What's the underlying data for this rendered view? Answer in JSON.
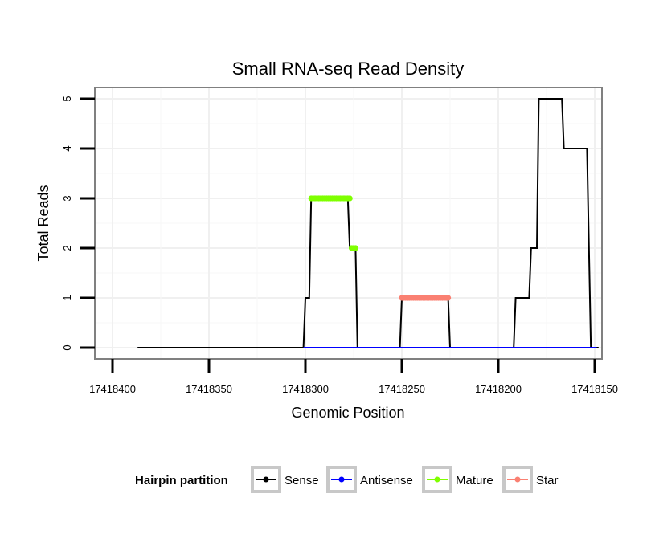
{
  "chart_data": {
    "type": "line",
    "title": "Small RNA-seq Read Density",
    "xlabel": "Genomic Position",
    "ylabel": "Total Reads",
    "x_reversed": true,
    "xlim": [
      17418405,
      17418150
    ],
    "ylim": [
      0,
      5
    ],
    "x_ticks": [
      17418400,
      17418350,
      17418300,
      17418250,
      17418200,
      17418150
    ],
    "x_tick_labels": [
      "17418400",
      "17418350",
      "17418300",
      "17418250",
      "17418200",
      "17418150"
    ],
    "y_ticks": [
      0,
      1,
      2,
      3,
      4,
      5
    ],
    "y_tick_labels": [
      "0",
      "1",
      "2",
      "3",
      "4",
      "5"
    ],
    "grid": true,
    "series": [
      {
        "name": "Sense",
        "color": "#000000",
        "style": "line",
        "points": [
          [
            17418387,
            0
          ],
          [
            17418301,
            0
          ],
          [
            17418300,
            1
          ],
          [
            17418298,
            1
          ],
          [
            17418297,
            3
          ],
          [
            17418278,
            3
          ],
          [
            17418277,
            2
          ],
          [
            17418274,
            2
          ],
          [
            17418273,
            0
          ],
          [
            17418251,
            0
          ],
          [
            17418250,
            1
          ],
          [
            17418226,
            1
          ],
          [
            17418225,
            0
          ],
          [
            17418192,
            0
          ],
          [
            17418191,
            1
          ],
          [
            17418184,
            1
          ],
          [
            17418183,
            2
          ],
          [
            17418180,
            2
          ],
          [
            17418179,
            5
          ],
          [
            17418167,
            5
          ],
          [
            17418166,
            4
          ],
          [
            17418154,
            4
          ],
          [
            17418153,
            2
          ],
          [
            17418152,
            0
          ],
          [
            17418148,
            0
          ]
        ]
      },
      {
        "name": "Antisense",
        "color": "#0000ff",
        "style": "line",
        "points": [
          [
            17418301,
            0
          ],
          [
            17418225,
            0
          ],
          [
            17418192,
            0
          ],
          [
            17418149,
            0
          ]
        ]
      },
      {
        "name": "Mature",
        "color": "#7fff00",
        "style": "points",
        "segments": [
          {
            "from": 17418297,
            "to": 17418277,
            "value": 3
          },
          {
            "from": 17418276,
            "to": 17418274,
            "value": 2
          }
        ]
      },
      {
        "name": "Star",
        "color": "#fa8072",
        "style": "points",
        "segments": [
          {
            "from": 17418250,
            "to": 17418226,
            "value": 1
          }
        ]
      }
    ],
    "legend": {
      "title": "Hairpin partition",
      "placement": "bottom",
      "entries": [
        {
          "label": "Sense",
          "color": "#000000"
        },
        {
          "label": "Antisense",
          "color": "#0000ff"
        },
        {
          "label": "Mature",
          "color": "#7fff00"
        },
        {
          "label": "Star",
          "color": "#fa8072"
        }
      ]
    }
  }
}
